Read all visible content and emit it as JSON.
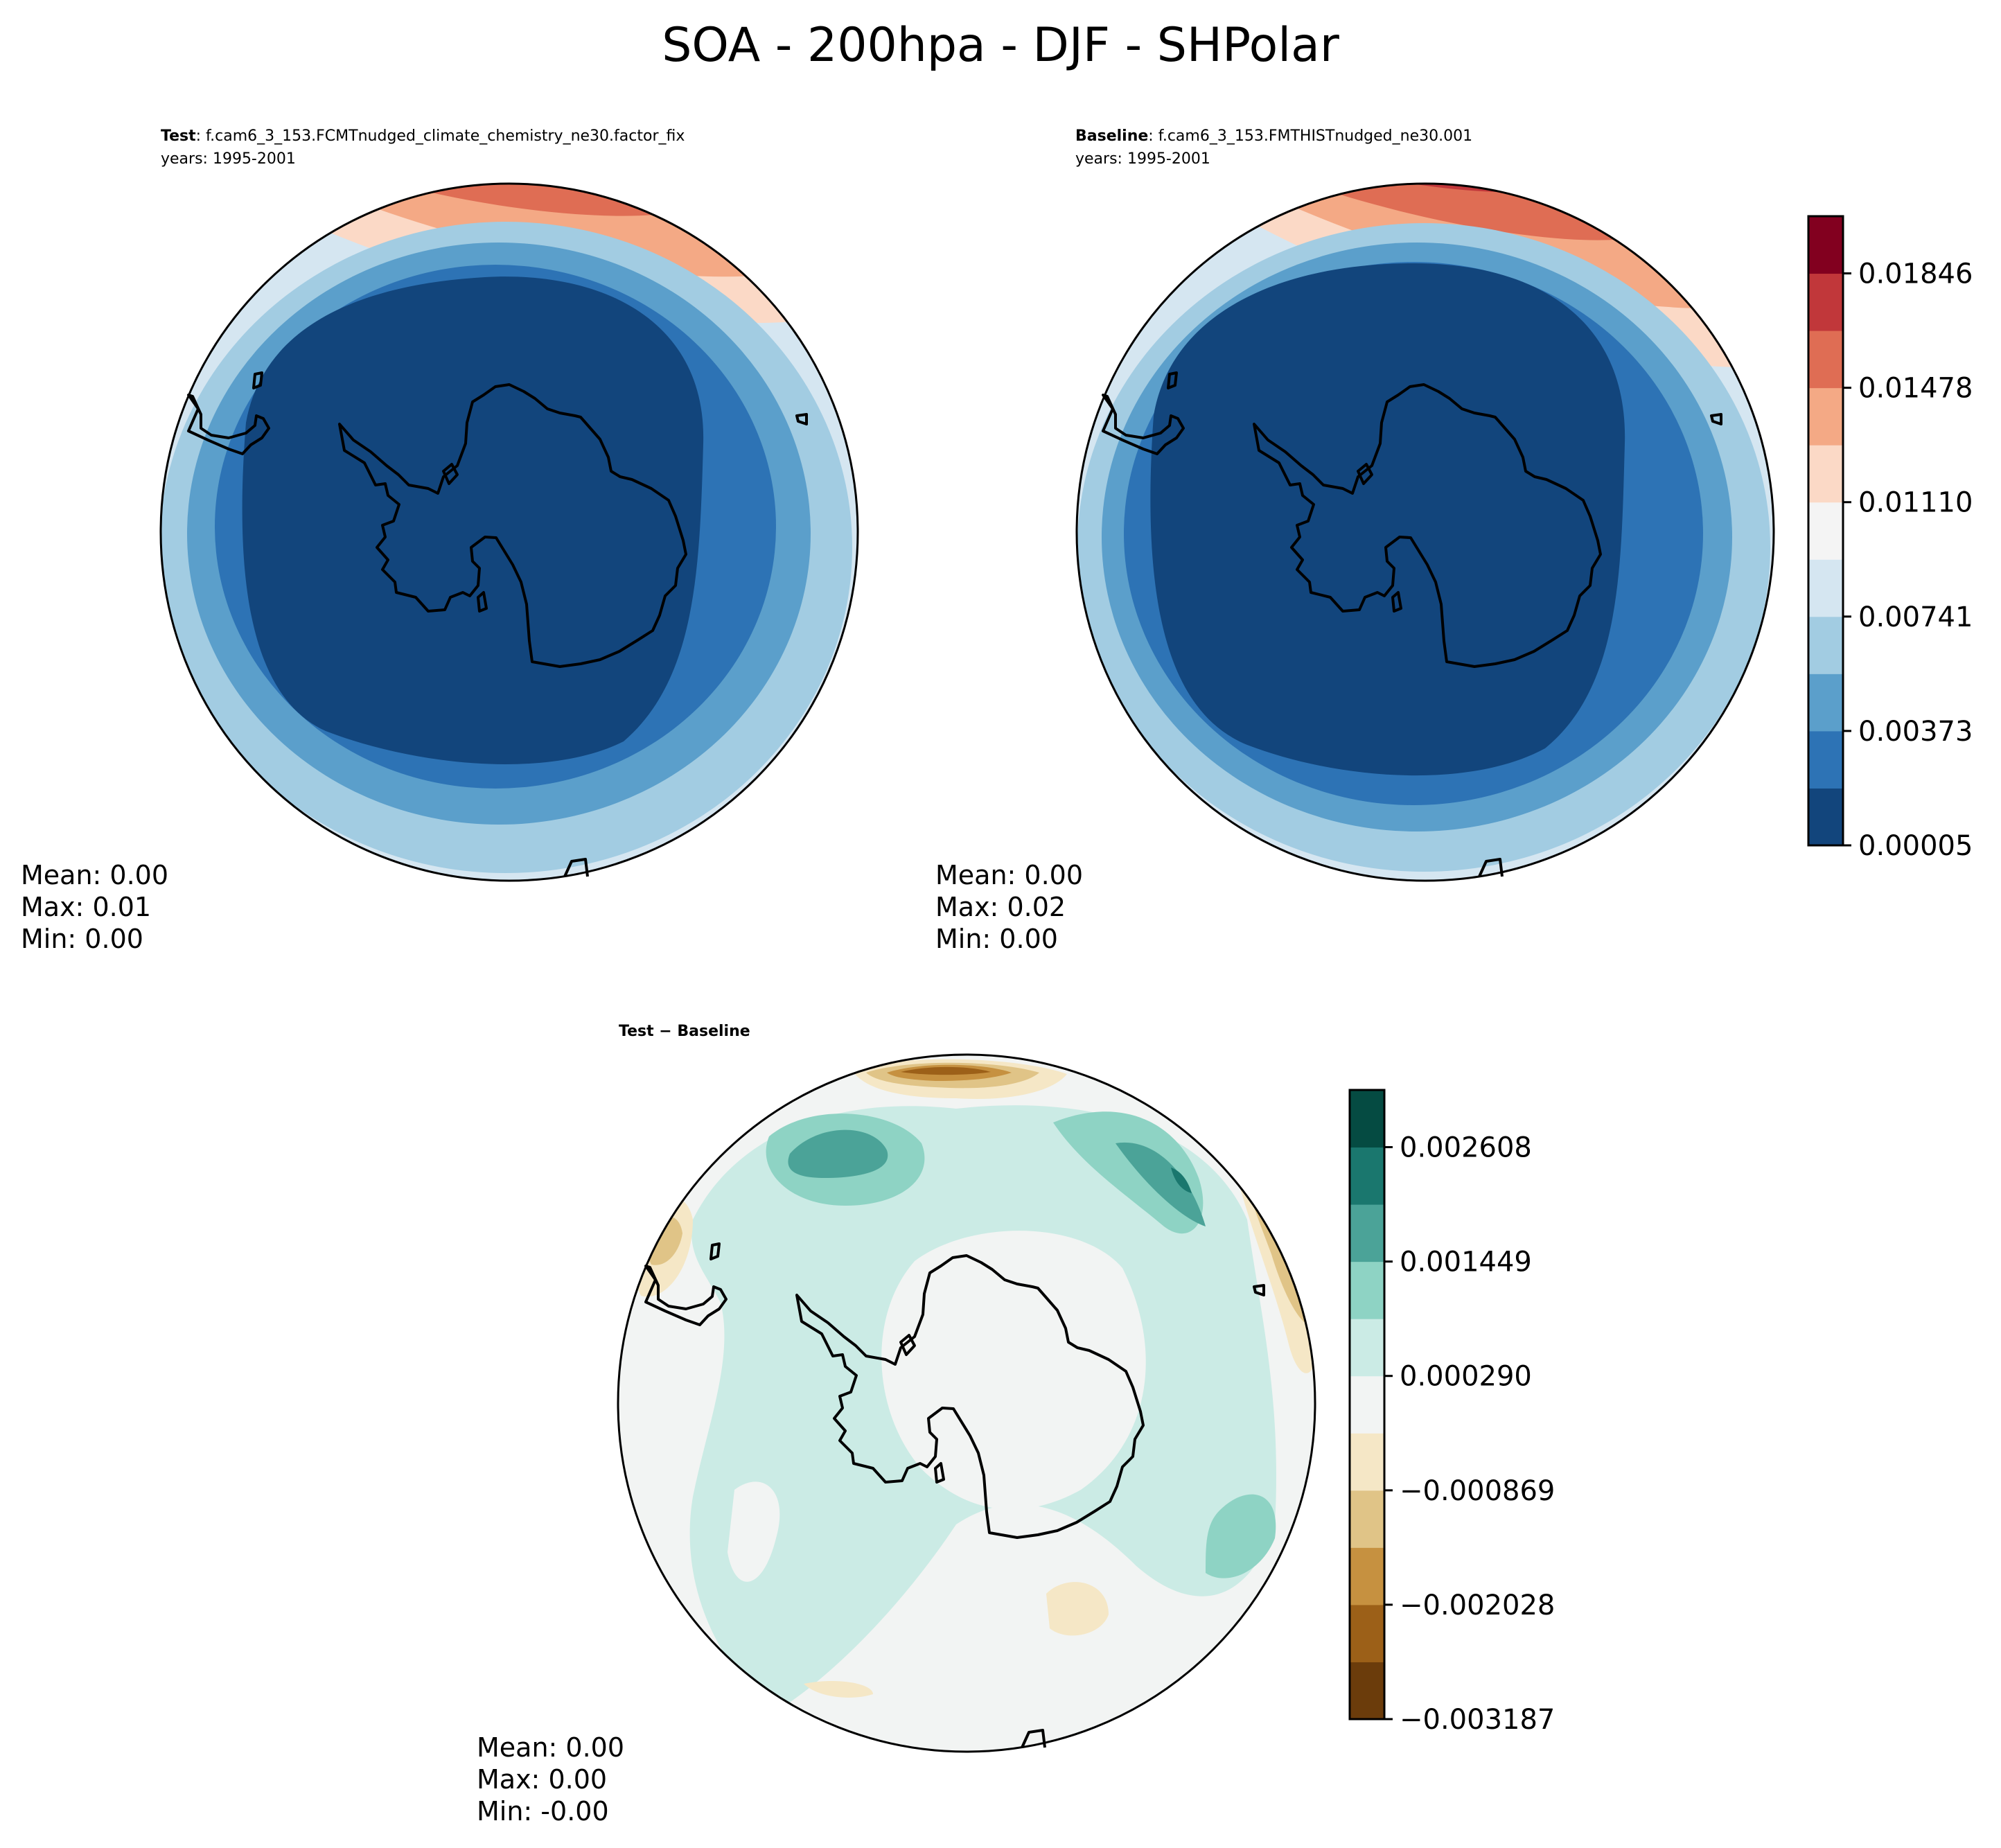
{
  "figure": {
    "title": "SOA - 200hpa - DJF - SHPolar"
  },
  "colors": {
    "main_scale": [
      "#12457c",
      "#2d73b5",
      "#5b9fcb",
      "#a2cce2",
      "#d5e6f1",
      "#f4f4f4",
      "#fbd9c6",
      "#f4a985",
      "#df6d54",
      "#c1373a",
      "#82001f"
    ],
    "diff_scale": [
      "#6b3c0b",
      "#9c6018",
      "#c69140",
      "#e0c487",
      "#f5e7c6",
      "#f2f4f3",
      "#cbebe5",
      "#8ed3c4",
      "#4ba398",
      "#1a776e",
      "#054b42"
    ]
  },
  "chart_data": [
    {
      "type": "heatmap",
      "name": "test-panel",
      "label_bold": "Test",
      "label_text": ": f.cam6_3_153.FCMTnudged_climate_chemistry_ne30.factor_fix",
      "years": "years: 1995-2001",
      "projection": "south-polar-stereographic",
      "stats": {
        "mean": "Mean:  0.00",
        "max": "Max:  0.01",
        "min": "Min:  0.00"
      }
    },
    {
      "type": "heatmap",
      "name": "baseline-panel",
      "label_bold": "Baseline",
      "label_text": ": f.cam6_3_153.FMTHISTnudged_ne30.001",
      "years": "years: 1995-2001",
      "projection": "south-polar-stereographic",
      "stats": {
        "mean": "Mean:  0.00",
        "max": "Max:  0.02",
        "min": "Min:  0.00"
      },
      "colorbar": {
        "levels": 11,
        "ticks": [
          "0.00005",
          "0.00373",
          "0.00741",
          "0.01110",
          "0.01478",
          "0.01846"
        ]
      }
    },
    {
      "type": "heatmap",
      "name": "difference-panel",
      "label_bold": "Test − Baseline",
      "projection": "south-polar-stereographic",
      "stats": {
        "mean": "Mean:  0.00",
        "max": "Max:  0.00",
        "min": "Min: -0.00"
      },
      "colorbar": {
        "levels": 11,
        "ticks": [
          "−0.003187",
          "−0.002028",
          "−0.000869",
          "0.000290",
          "0.001449",
          "0.002608"
        ]
      }
    }
  ]
}
